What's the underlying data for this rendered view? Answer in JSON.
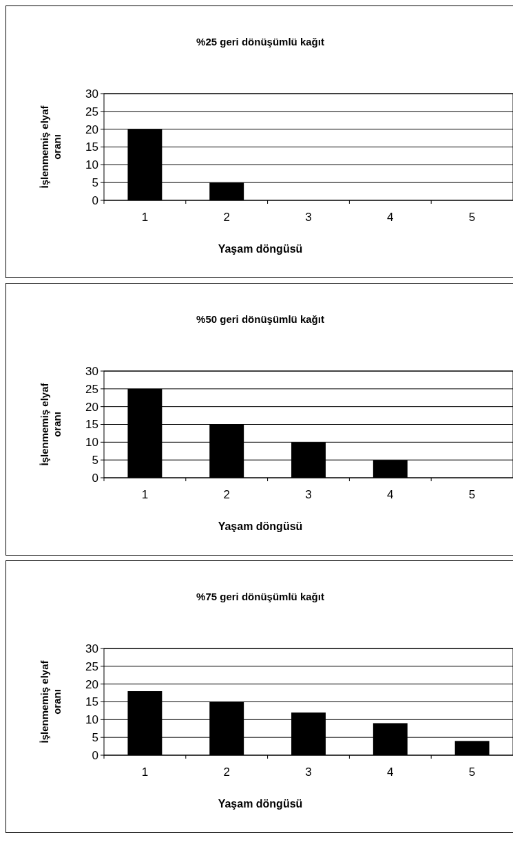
{
  "chart_data": [
    {
      "type": "bar",
      "title": "%25 geri dönüşümlü kağıt",
      "xlabel": "Yaşam döngüsü",
      "ylabel": "İşlenmemiş elyaf oranı",
      "categories": [
        "1",
        "2",
        "3",
        "4",
        "5"
      ],
      "series": [
        {
          "color": "#000000",
          "values": [
            20,
            5,
            0,
            0,
            0
          ]
        }
      ],
      "ylim": [
        0,
        30
      ],
      "yticks": [
        0,
        5,
        10,
        15,
        20,
        25,
        30
      ],
      "grid": "y"
    },
    {
      "type": "bar",
      "title": "%50 geri dönüşümlü kağıt",
      "xlabel": "Yaşam döngüsü",
      "ylabel": "İşlenmemiş elyaf oranı",
      "categories": [
        "1",
        "2",
        "3",
        "4",
        "5"
      ],
      "series": [
        {
          "color": "#000000",
          "values": [
            25,
            15,
            10,
            5,
            0
          ]
        }
      ],
      "ylim": [
        0,
        30
      ],
      "yticks": [
        0,
        5,
        10,
        15,
        20,
        25,
        30
      ],
      "grid": "y"
    },
    {
      "type": "bar",
      "title": "%75 geri dönüşümlü kağıt",
      "xlabel": "Yaşam döngüsü",
      "ylabel": "İşlenmemiş elyaf oranı",
      "categories": [
        "1",
        "2",
        "3",
        "4",
        "5"
      ],
      "series": [
        {
          "color": "#000000",
          "values": [
            18,
            15,
            12,
            9,
            4
          ]
        }
      ],
      "ylim": [
        0,
        30
      ],
      "yticks": [
        0,
        5,
        10,
        15,
        20,
        25,
        30
      ],
      "grid": "y"
    }
  ]
}
